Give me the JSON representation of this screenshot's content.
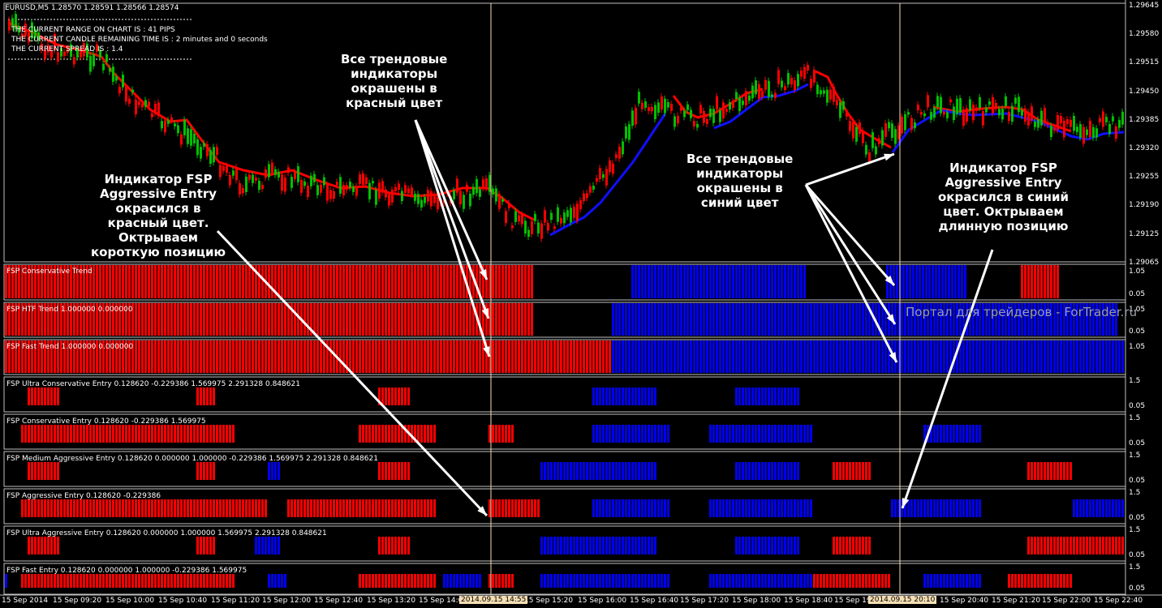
{
  "symbol_header": "EURUSD,M5  1.28570 1.28591 1.28566 1.28574",
  "info_lines": [
    "THE CURRENT RANGE ON CHART IS : 41 PIPS",
    "THE CURRENT CANDLE REMAINING TIME IS : 2 minutes and 0 seconds",
    "THE CURRENT SPREAD IS : 1.4"
  ],
  "price_scale": [
    "1.29645",
    "1.29580",
    "1.29515",
    "1.29450",
    "1.29385",
    "1.29320",
    "1.29255",
    "1.29190",
    "1.29125",
    "1.29065"
  ],
  "panels": [
    {
      "label": "FSP Conservative Trend",
      "top": "1.05",
      "bottom": "0.05"
    },
    {
      "label": "FSP HTF Trend 1.000000 0.000000",
      "top": "1.05",
      "bottom": "0.05"
    },
    {
      "label": "FSP Fast Trend 1.000000 0.000000",
      "top": "1.05",
      "bottom": ""
    },
    {
      "label": "FSP Ultra Conservative Entry 0.128620 -0.229386 1.569975 2.291328 0.848621",
      "top": "1.5",
      "bottom": "0.05"
    },
    {
      "label": "FSP Conservative Entry 0.128620 -0.229386 1.569975",
      "top": "1.5",
      "bottom": "0.05"
    },
    {
      "label": "FSP Medium Aggressive Entry 0.128620 0.000000 1.000000 -0.229386 1.569975 2.291328 0.848621",
      "top": "1.5",
      "bottom": "0.05"
    },
    {
      "label": "FSP Aggressive Entry 0.128620 -0.229386",
      "top": "1.5",
      "bottom": "0.05"
    },
    {
      "label": "FSP Ultra Aggressive Entry 0.128620 0.000000 1.000000 1.569975 2.291328 0.848621",
      "top": "1.5",
      "bottom": "0.05"
    },
    {
      "label": "FSP Fast Entry 0.128620 0.000000 1.000000 -0.229386 1.569975",
      "top": "1.5",
      "bottom": "0.05"
    }
  ],
  "time_labels": [
    "15 Sep 2014",
    "15 Sep 09:20",
    "15 Sep 10:00",
    "15 Sep 10:40",
    "15 Sep 11:20",
    "15 Sep 12:00",
    "15 Sep 12:40",
    "15 Sep 13:20",
    "15 Sep 14:00",
    "15 Sep 15:20",
    "15 Sep 16:00",
    "15 Sep 16:40",
    "15 Sep 17:20",
    "15 Sep 18:00",
    "15 Sep 18:40",
    "15 Sep 19",
    "15 Sep 20:40",
    "15 Sep 21:20",
    "15 Sep 22:00",
    "15 Sep 22:40"
  ],
  "time_highlights": [
    "2014.09.15 14:55",
    "2014.09.15 20:10"
  ],
  "annotations": {
    "red_trend": "Все трендовые\nиндикаторы\nокрашены в\nкрасный цвет",
    "short_entry": "Индикатор FSP\nAggressive Entry\nокрасился в\nкрасный цвет.\nОктрываем\nкороткую позицию",
    "blue_trend": "Все трендовые\nиндикаторы\nокрашены в\nсиний цвет",
    "long_entry": "Индикатор FSP\nAggressive Entry\nокрасился в синий\nцвет. Октрываем\nдлинную позицию"
  },
  "watermark": "Портал для трейдеров - ForTrader.ru",
  "colors": {
    "red": "#ff0000",
    "blue": "#0000ee",
    "bull": "#00c000",
    "bear": "#ff0000",
    "line_red": "#ff0000",
    "line_blue": "#1010ff",
    "vline": "#f5deb3"
  }
}
